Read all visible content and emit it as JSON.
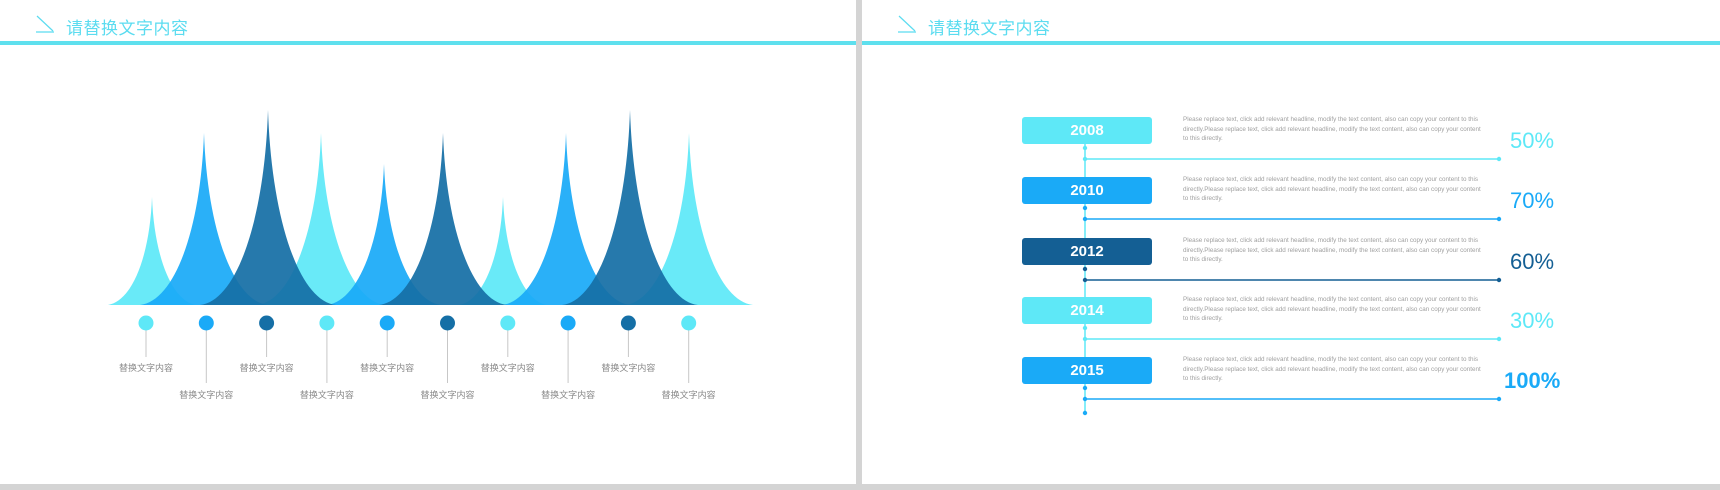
{
  "left_slide": {
    "title": "请替换文字内容",
    "labels": [
      "替换文字内容",
      "替换文字内容",
      "替换文字内容",
      "替换文字内容",
      "替换文字内容",
      "替换文字内容",
      "替换文字内容",
      "替换文字内容",
      "替换文字内容",
      "替换文字内容"
    ],
    "colors": {
      "light": "#5ee8f7",
      "mid": "#1aaaf7",
      "dark": "#156fa6"
    }
  },
  "right_slide": {
    "title": "请替换文字内容",
    "entries": [
      {
        "year": "2008",
        "percent": "50%",
        "color": "#5ee8f7",
        "text": "Please replace text, click add relevant headline, modify the text content, also can copy your content to this directly.Please replace text, click add relevant headline, modify the text content, also can copy your content to this directly."
      },
      {
        "year": "2010",
        "percent": "70%",
        "color": "#1aaaf7",
        "text": "Please replace text, click add relevant headline, modify the text content, also can copy your content to this directly.Please replace text, click add relevant headline, modify the text content, also can copy your content to this directly."
      },
      {
        "year": "2012",
        "percent": "60%",
        "color": "#145f94",
        "text": "Please replace text, click add relevant headline, modify the text content, also can copy your content to this directly.Please replace text, click add relevant headline, modify the text content, also can copy your content to this directly."
      },
      {
        "year": "2014",
        "percent": "30%",
        "color": "#5ee8f7",
        "text": "Please replace text, click add relevant headline, modify the text content, also can copy your content to this directly.Please replace text, click add relevant headline, modify the text content, also can copy your content to this directly."
      },
      {
        "year": "2015",
        "percent": "100%",
        "color": "#1aaaf7",
        "text": "Please replace text, click add relevant headline, modify the text content, also can copy your content to this directly.Please replace text, click add relevant headline, modify the text content, also can copy your content to this directly."
      }
    ]
  }
}
